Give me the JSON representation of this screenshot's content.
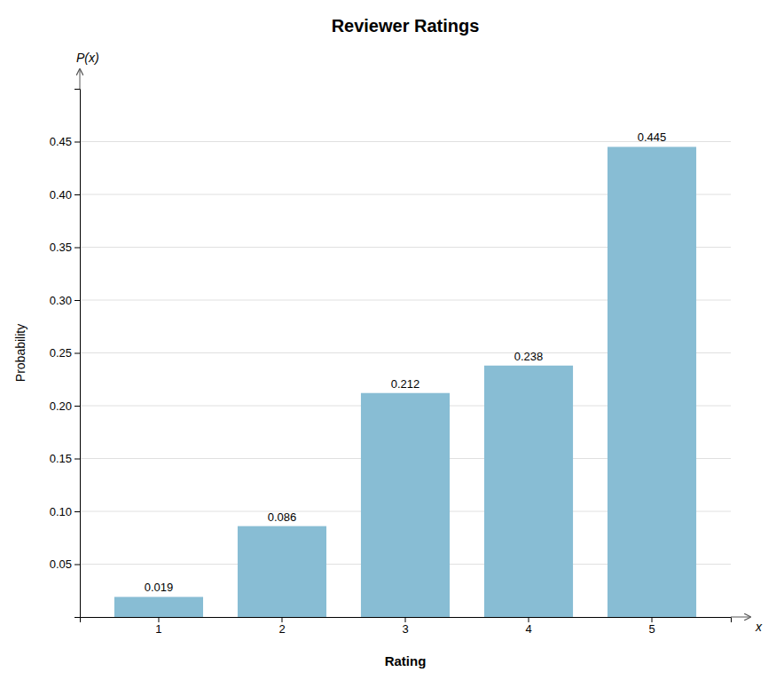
{
  "chart_data": {
    "type": "bar",
    "title": "Reviewer Ratings",
    "x_label": "Rating",
    "y_label": "Probability",
    "annotations": [
      "P(x)",
      "x"
    ],
    "categories": [
      1,
      2,
      3,
      4,
      5
    ],
    "values": [
      0.019,
      0.086,
      0.212,
      0.238,
      0.445
    ],
    "color": "#88bdd4",
    "ylim": [
      0,
      0.5
    ],
    "yticks": [
      0.05,
      {
        "value": 0.1,
        "label": "0.10"
      },
      0.15,
      {
        "value": 0.2,
        "label": "0.20"
      },
      0.25,
      {
        "value": 0.3,
        "label": "0.30"
      },
      0.35,
      {
        "value": 0.4,
        "label": "0.40"
      },
      0.45
    ],
    "grid": true,
    "data_labels": true
  }
}
